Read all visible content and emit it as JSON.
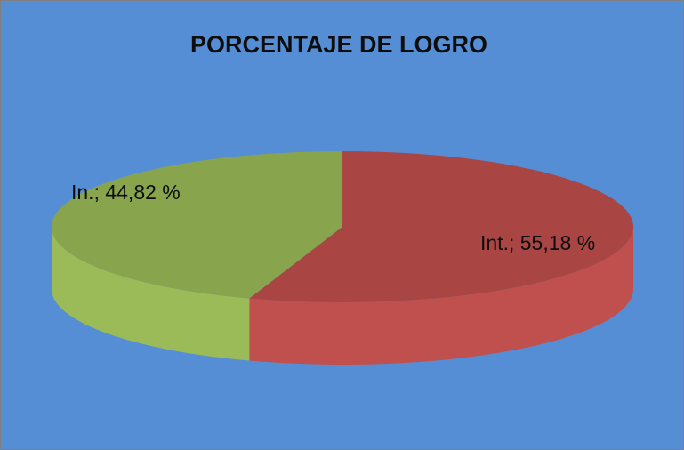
{
  "chart_data": {
    "type": "pie",
    "title": "PORCENTAJE DE LOGRO",
    "categories": [
      "Int.",
      "In."
    ],
    "values": [
      55.18,
      44.82
    ],
    "value_labels": [
      "Int.; 55,18 %",
      "In.; 44,82 %"
    ],
    "colors": [
      "#C0504D",
      "#9BBB59"
    ],
    "background": "#558ED5"
  }
}
